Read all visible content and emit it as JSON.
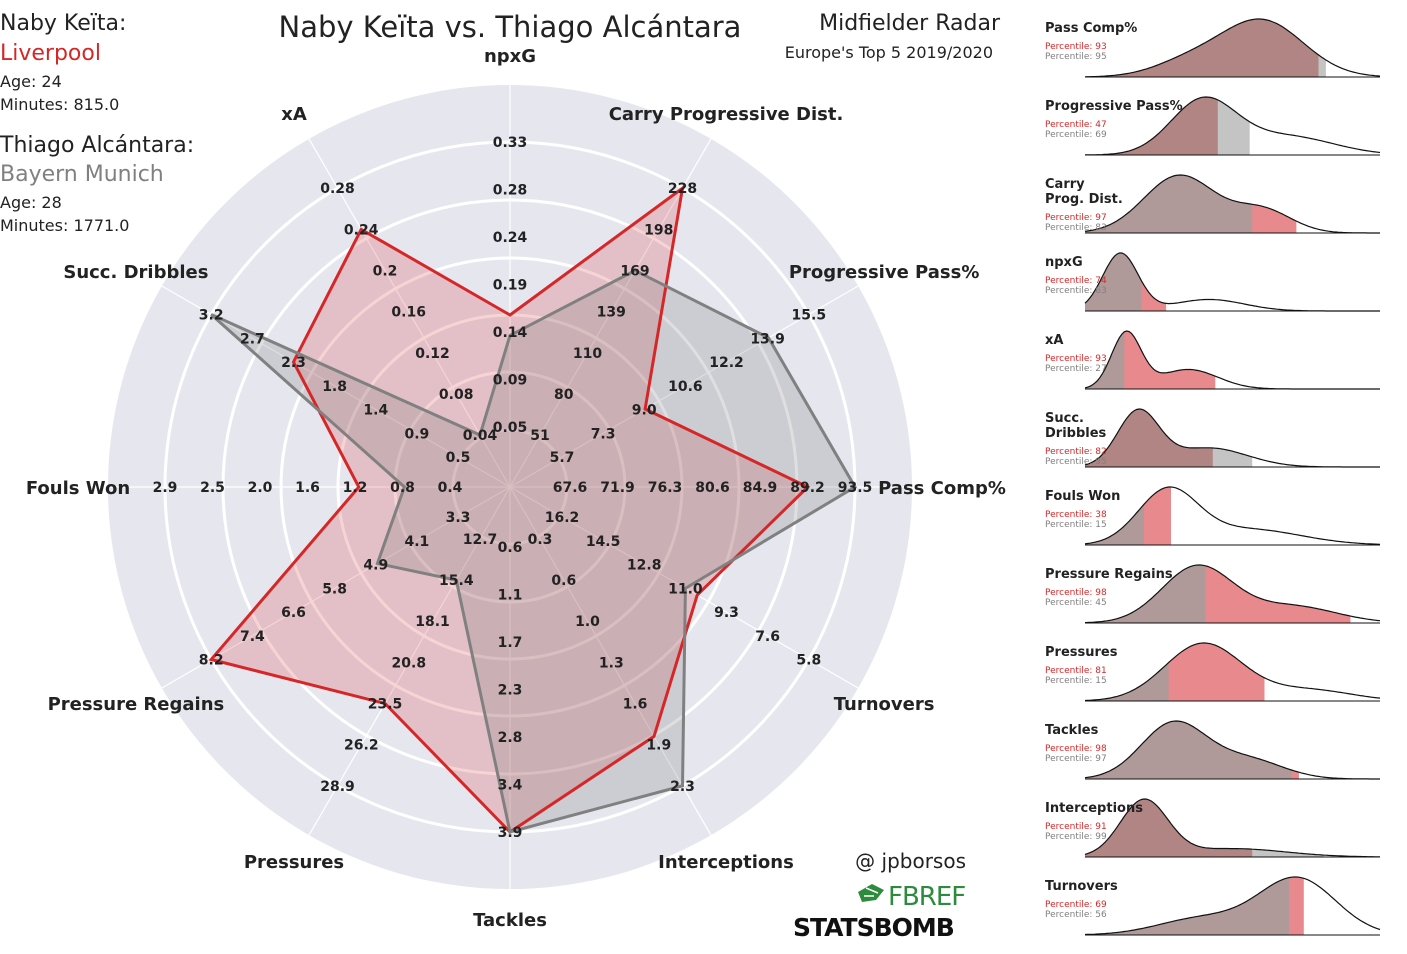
{
  "title": "Naby Keïta vs. Thiago Alcántara",
  "subtitle_1": "Midfielder Radar",
  "subtitle_2": "Europe's Top 5 2019/2020",
  "credit": "@ jpborsos",
  "logo_fbref": "FBREF",
  "logo_statsbomb": "STATSBOMB",
  "player1": {
    "name": "Naby Keïta:",
    "club": "Liverpool",
    "age": "Age: 24",
    "minutes": "Minutes: 815.0",
    "color": "#d62728"
  },
  "player2": {
    "name": "Thiago Alcántara:",
    "club": "Bayern Munich",
    "age": "Age: 28",
    "minutes": "Minutes: 1771.0",
    "color": "#808080"
  },
  "colors": {
    "radar_bg": "#e6e6ef",
    "p1": "#d62728",
    "p2": "#808080",
    "ring": "#ffffff"
  },
  "chart_data": {
    "type": "radar",
    "categories": [
      "npxG",
      "Carry Progressive Dist.",
      "Progressive Pass%",
      "Pass Comp%",
      "Turnovers",
      "Interceptions",
      "Tackles",
      "Pressures",
      "Pressure Regains",
      "Fouls Won",
      "Succ. Dribbles",
      "xA"
    ],
    "tick_labels": [
      [
        "0.05",
        "0.09",
        "0.14",
        "0.19",
        "0.24",
        "0.28",
        "0.33"
      ],
      [
        "51",
        "80",
        "110",
        "139",
        "169",
        "198",
        "228"
      ],
      [
        "5.7",
        "7.3",
        "9.0",
        "10.6",
        "12.2",
        "13.9",
        "15.5"
      ],
      [
        "67.6",
        "71.9",
        "76.3",
        "80.6",
        "84.9",
        "89.2",
        "93.5"
      ],
      [
        "16.2",
        "14.5",
        "12.8",
        "11.0",
        "9.3",
        "7.6",
        "5.8"
      ],
      [
        "0.3",
        "0.6",
        "1.0",
        "1.3",
        "1.6",
        "1.9",
        "2.3"
      ],
      [
        "0.6",
        "1.1",
        "1.7",
        "2.3",
        "2.8",
        "3.4",
        "3.9"
      ],
      [
        "12.7",
        "15.4",
        "18.1",
        "20.8",
        "23.5",
        "26.2",
        "28.9"
      ],
      [
        "3.3",
        "4.1",
        "4.9",
        "5.8",
        "6.6",
        "7.4",
        "8.2"
      ],
      [
        "0.4",
        "0.8",
        "1.2",
        "1.6",
        "2.0",
        "2.5",
        "2.9"
      ],
      [
        "0.5",
        "0.9",
        "1.4",
        "1.8",
        "2.3",
        "2.7",
        "3.2"
      ],
      [
        "0.04",
        "0.08",
        "0.12",
        "0.16",
        "0.2",
        "0.24",
        "0.28"
      ]
    ],
    "series": [
      {
        "name": "Naby Keïta",
        "values": [
          0.16,
          228,
          9.0,
          89.2,
          10.5,
          1.9,
          3.9,
          23.5,
          8.2,
          1.2,
          2.3,
          0.24
        ]
      },
      {
        "name": "Thiago Alcántara",
        "values": [
          0.14,
          169,
          13.9,
          93.5,
          11.0,
          2.3,
          3.9,
          15.4,
          4.9,
          0.8,
          3.2,
          0.04
        ]
      }
    ],
    "kde_panels": [
      {
        "name": "Pass Comp%",
        "p1": "Percentile: 93",
        "p2": "Percentile: 95",
        "p1_pct": 93,
        "p2_pct": 95
      },
      {
        "name": "Progressive Pass%",
        "p1": "Percentile: 47",
        "p2": "Percentile: 69",
        "p1_pct": 47,
        "p2_pct": 69
      },
      {
        "name": "Carry\nProg. Dist.",
        "p1": "Percentile: 97",
        "p2": "Percentile: 83",
        "p1_pct": 97,
        "p2_pct": 83
      },
      {
        "name": "npxG",
        "p1": "Percentile: 74",
        "p2": "Percentile: 63",
        "p1_pct": 74,
        "p2_pct": 63
      },
      {
        "name": "xA",
        "p1": "Percentile: 93",
        "p2": "Percentile: 27",
        "p1_pct": 93,
        "p2_pct": 27
      },
      {
        "name": "Succ.\nDribbles",
        "p1": "Percentile: 82",
        "p2": "Percentile: 95",
        "p1_pct": 82,
        "p2_pct": 95
      },
      {
        "name": "Fouls Won",
        "p1": "Percentile: 38",
        "p2": "Percentile: 15",
        "p1_pct": 38,
        "p2_pct": 15
      },
      {
        "name": "Pressure Regains",
        "p1": "Percentile: 98",
        "p2": "Percentile: 45",
        "p1_pct": 98,
        "p2_pct": 45
      },
      {
        "name": "Pressures",
        "p1": "Percentile: 81",
        "p2": "Percentile: 15",
        "p1_pct": 81,
        "p2_pct": 15
      },
      {
        "name": "Tackles",
        "p1": "Percentile: 98",
        "p2": "Percentile: 97",
        "p1_pct": 98,
        "p2_pct": 97
      },
      {
        "name": "Interceptions",
        "p1": "Percentile: 91",
        "p2": "Percentile: 99",
        "p1_pct": 91,
        "p2_pct": 99
      },
      {
        "name": "Turnovers",
        "p1": "Percentile: 69",
        "p2": "Percentile: 56",
        "p1_pct": 69,
        "p2_pct": 56
      }
    ]
  }
}
